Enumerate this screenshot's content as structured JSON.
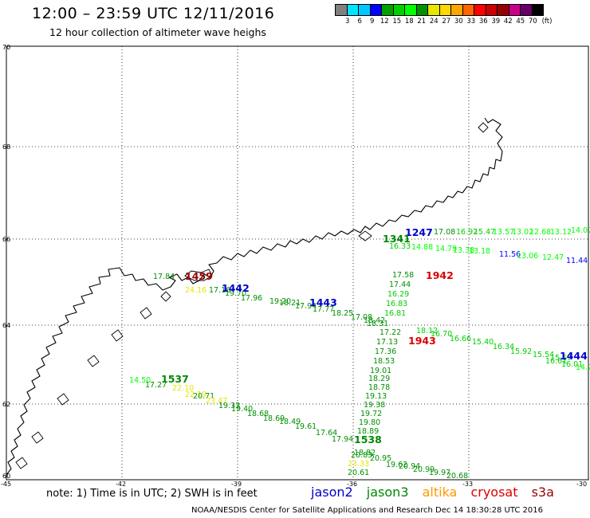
{
  "title": "12:00 – 23:59 UTC 12/11/2016",
  "subtitle": "12 hour collection of altimeter wave heighs",
  "legend": {
    "unit": "(ft)",
    "colors": [
      "#808080",
      "#00e5ff",
      "#00c8ff",
      "#0000ff",
      "#00a000",
      "#00d000",
      "#00ff00",
      "#009000",
      "#e6e600",
      "#ffd700",
      "#ffa500",
      "#ff6600",
      "#ff0000",
      "#cc0000",
      "#990000",
      "#cc0088",
      "#660066",
      "#000000"
    ],
    "labels": [
      "3",
      "6",
      "9",
      "12",
      "15",
      "18",
      "21",
      "24",
      "27",
      "30",
      "33",
      "36",
      "39",
      "42",
      "45",
      "70"
    ]
  },
  "axes": {
    "lat_labels": [
      "70",
      "68",
      "66",
      "64",
      "62",
      "60"
    ],
    "lon_labels": [
      "-45",
      "-42",
      "-39",
      "-36",
      "-33",
      "-30"
    ]
  },
  "note": "note: 1) Time is in UTC; 2) SWH is in feet",
  "satellites": [
    {
      "name": "jason2",
      "color": "#0000cc"
    },
    {
      "name": "jason3",
      "color": "#008800"
    },
    {
      "name": "altika",
      "color": "#ff9900"
    },
    {
      "name": "cryosat",
      "color": "#dd0000"
    },
    {
      "name": "s3a",
      "color": "#990000"
    }
  ],
  "footer": "NOAA/NESDIS Center for Satellite Applications and Research    Dec 14 18:30:28 UTC 2016",
  "map_data": {
    "pass_times": [
      {
        "text": "1247",
        "color": "#0000cc"
      },
      {
        "text": "1341",
        "color": "#008800"
      },
      {
        "text": "1942",
        "color": "#dd0000"
      },
      {
        "text": "1459",
        "color": "#990000"
      },
      {
        "text": "1442",
        "color": "#0000cc"
      },
      {
        "text": "1443",
        "color": "#0000cc"
      },
      {
        "text": "1943",
        "color": "#dd0000"
      },
      {
        "text": "1444",
        "color": "#0000cc"
      },
      {
        "text": "1537",
        "color": "#008800"
      },
      {
        "text": "1538",
        "color": "#008800"
      }
    ],
    "observations": [
      {
        "v": "17.84",
        "c": "#009000"
      },
      {
        "v": "24.16",
        "c": "#e6e600"
      },
      {
        "v": "17.16",
        "c": "#009000"
      },
      {
        "v": "19.70",
        "c": "#009000"
      },
      {
        "v": "17.96",
        "c": "#009000"
      },
      {
        "v": "19.20",
        "c": "#009000"
      },
      {
        "v": "18.21",
        "c": "#009000"
      },
      {
        "v": "17.94",
        "c": "#009000"
      },
      {
        "v": "17.77",
        "c": "#009000"
      },
      {
        "v": "18.25",
        "c": "#009000"
      },
      {
        "v": "17.08",
        "c": "#009000"
      },
      {
        "v": "18.42",
        "c": "#009000"
      },
      {
        "v": "18.31",
        "c": "#009000"
      },
      {
        "v": "17.58",
        "c": "#009000"
      },
      {
        "v": "17.44",
        "c": "#009000"
      },
      {
        "v": "16.29",
        "c": "#00d000"
      },
      {
        "v": "16.83",
        "c": "#00d000"
      },
      {
        "v": "16.81",
        "c": "#00d000"
      },
      {
        "v": "17.22",
        "c": "#009000"
      },
      {
        "v": "17.13",
        "c": "#009000"
      },
      {
        "v": "17.36",
        "c": "#009000"
      },
      {
        "v": "18.53",
        "c": "#009000"
      },
      {
        "v": "19.01",
        "c": "#009000"
      },
      {
        "v": "18.29",
        "c": "#009000"
      },
      {
        "v": "18.78",
        "c": "#009000"
      },
      {
        "v": "19.13",
        "c": "#009000"
      },
      {
        "v": "19.38",
        "c": "#009000"
      },
      {
        "v": "19.72",
        "c": "#009000"
      },
      {
        "v": "19.80",
        "c": "#009000"
      },
      {
        "v": "18.89",
        "c": "#009000"
      },
      {
        "v": "20.83",
        "c": "#009000"
      },
      {
        "v": "20.61",
        "c": "#009000"
      },
      {
        "v": "23.33",
        "c": "#e6e600"
      },
      {
        "v": "18.12",
        "c": "#00d000"
      },
      {
        "v": "16.70",
        "c": "#00d000"
      },
      {
        "v": "16.66",
        "c": "#00d000"
      },
      {
        "v": "15.40",
        "c": "#00d000"
      },
      {
        "v": "16.34",
        "c": "#00d000"
      },
      {
        "v": "15.92",
        "c": "#00d000"
      },
      {
        "v": "15.54",
        "c": "#00d000"
      },
      {
        "v": "15.67",
        "c": "#00d000"
      },
      {
        "v": "16.61",
        "c": "#00d000"
      },
      {
        "v": "16.01",
        "c": "#00d000"
      },
      {
        "v": "14.2",
        "c": "#00ff00"
      },
      {
        "v": "14.50",
        "c": "#00ff00"
      },
      {
        "v": "17.27",
        "c": "#009000"
      },
      {
        "v": "22.10",
        "c": "#e6e600"
      },
      {
        "v": "22.19",
        "c": "#e6e600"
      },
      {
        "v": "20.71",
        "c": "#009000"
      },
      {
        "v": "23.47",
        "c": "#e6e600"
      },
      {
        "v": "19.33",
        "c": "#009000"
      },
      {
        "v": "19.40",
        "c": "#009000"
      },
      {
        "v": "18.68",
        "c": "#009000"
      },
      {
        "v": "18.69",
        "c": "#009000"
      },
      {
        "v": "18.49",
        "c": "#009000"
      },
      {
        "v": "19.61",
        "c": "#009000"
      },
      {
        "v": "17.64",
        "c": "#009000"
      },
      {
        "v": "17.94",
        "c": "#009000"
      },
      {
        "v": "18.82",
        "c": "#009000"
      },
      {
        "v": "20.95",
        "c": "#009000"
      },
      {
        "v": "19.62",
        "c": "#009000"
      },
      {
        "v": "20.94",
        "c": "#009000"
      },
      {
        "v": "20.99",
        "c": "#009000"
      },
      {
        "v": "19.97",
        "c": "#009000"
      },
      {
        "v": "20.68",
        "c": "#009000"
      },
      {
        "v": "17.08",
        "c": "#009000"
      },
      {
        "v": "16.92",
        "c": "#00d000"
      },
      {
        "v": "15.47",
        "c": "#00d000"
      },
      {
        "v": "13.57",
        "c": "#00ff00"
      },
      {
        "v": "13.02",
        "c": "#00ff00"
      },
      {
        "v": "12.68",
        "c": "#00ff00"
      },
      {
        "v": "13.12",
        "c": "#00ff00"
      },
      {
        "v": "14.07",
        "c": "#00ff00"
      },
      {
        "v": "16.33",
        "c": "#00d000"
      },
      {
        "v": "14.88",
        "c": "#00ff00"
      },
      {
        "v": "14.79",
        "c": "#00ff00"
      },
      {
        "v": "13.38",
        "c": "#00ff00"
      },
      {
        "v": "13.18",
        "c": "#00ff00"
      },
      {
        "v": "11.56",
        "c": "#0000ff"
      },
      {
        "v": "13.06",
        "c": "#00ff00"
      },
      {
        "v": "12.47",
        "c": "#00ff00"
      },
      {
        "v": "11.44",
        "c": "#0000ff"
      }
    ]
  }
}
